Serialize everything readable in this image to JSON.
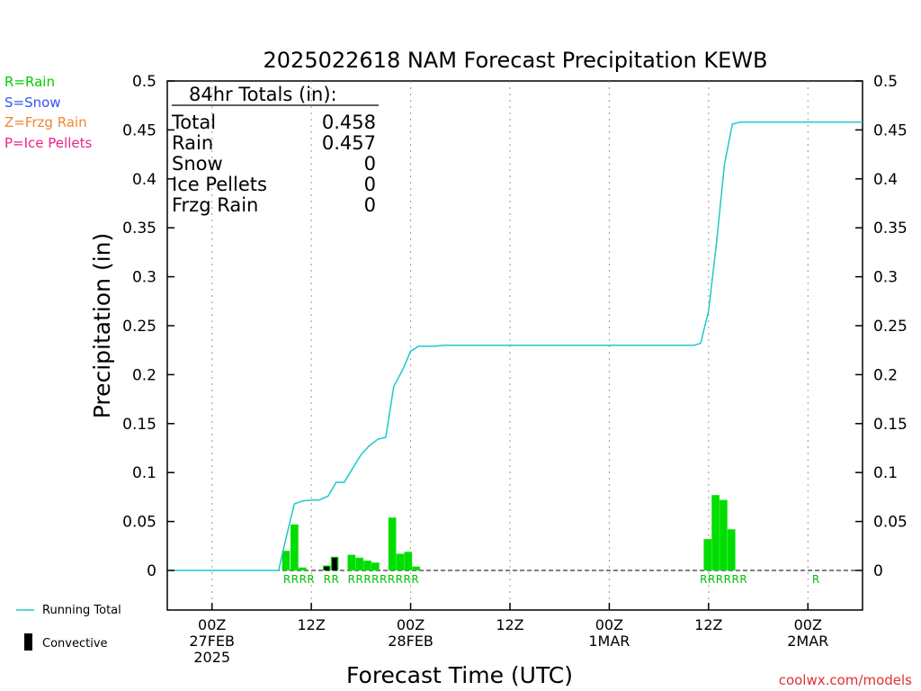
{
  "title": "2025022618 NAM Forecast Precipitation KEWB",
  "credit": "coolwx.com/models",
  "type_legend": [
    {
      "label": "R=Rain",
      "color": "#00cc00"
    },
    {
      "label": "S=Snow",
      "color": "#3355ee"
    },
    {
      "label": "Z=Frzg Rain",
      "color": "#ee8833"
    },
    {
      "label": "P=Ice Pellets",
      "color": "#ee2288"
    }
  ],
  "bottom_legend": {
    "running_total": "Running Total",
    "convective": "Convective"
  },
  "totals": {
    "heading": "84hr Totals (in):",
    "rows": [
      {
        "label": "Total",
        "value": "0.458"
      },
      {
        "label": "Rain",
        "value": "0.457"
      },
      {
        "label": "Snow",
        "value": "0"
      },
      {
        "label": "Ice Pellets",
        "value": "0"
      },
      {
        "label": "Frzg Rain",
        "value": "0"
      }
    ]
  },
  "chart_data": {
    "type": "bar",
    "title": "2025022618 NAM Forecast Precipitation KEWB",
    "xlabel": "Forecast Time (UTC)",
    "ylabel": "Precipitation (in)",
    "ylim": [
      -0.04,
      0.5
    ],
    "yticks": [
      "0.5",
      "0.45",
      "0.4",
      "0.35",
      "0.3",
      "0.25",
      "0.2",
      "0.15",
      "0.1",
      "0.05",
      "0"
    ],
    "ytick_values": [
      0.5,
      0.45,
      0.4,
      0.35,
      0.3,
      0.25,
      0.2,
      0.15,
      0.1,
      0.05,
      0
    ],
    "xlim_hours": [
      -4.5,
      65.5
    ],
    "x_ticks": [
      {
        "hour": 0,
        "lines": [
          "00Z",
          "27FEB",
          "2025"
        ]
      },
      {
        "hour": 10,
        "lines": [
          "12Z"
        ]
      },
      {
        "hour": 20,
        "lines": [
          "00Z",
          "28FEB"
        ]
      },
      {
        "hour": 30,
        "lines": [
          "12Z"
        ]
      },
      {
        "hour": 40,
        "lines": [
          "00Z",
          "1MAR"
        ]
      },
      {
        "hour": 50,
        "lines": [
          "12Z"
        ]
      },
      {
        "hour": 60,
        "lines": [
          "00Z",
          "2MAR"
        ]
      }
    ],
    "grid": "vertical dotted",
    "series": [
      {
        "name": "Running Total",
        "color": "#20c8c8",
        "points": [
          [
            -4.2,
            0
          ],
          [
            6.7,
            0
          ],
          [
            7.5,
            0.035
          ],
          [
            8.3,
            0.068
          ],
          [
            9.1,
            0.071
          ],
          [
            10.0,
            0.072
          ],
          [
            10.8,
            0.072
          ],
          [
            11.7,
            0.076
          ],
          [
            12.5,
            0.09
          ],
          [
            13.3,
            0.09
          ],
          [
            14.2,
            0.105
          ],
          [
            15.0,
            0.118
          ],
          [
            15.8,
            0.127
          ],
          [
            16.7,
            0.134
          ],
          [
            17.5,
            0.136
          ],
          [
            18.3,
            0.188
          ],
          [
            19.2,
            0.205
          ],
          [
            20.0,
            0.224
          ],
          [
            20.8,
            0.229
          ],
          [
            21.7,
            0.229
          ],
          [
            22.5,
            0.229
          ],
          [
            23.3,
            0.23
          ],
          [
            30,
            0.23
          ],
          [
            40,
            0.23
          ],
          [
            48.5,
            0.23
          ],
          [
            49.2,
            0.232
          ],
          [
            50.0,
            0.265
          ],
          [
            50.8,
            0.335
          ],
          [
            51.6,
            0.415
          ],
          [
            52.4,
            0.456
          ],
          [
            53.2,
            0.458
          ],
          [
            58.0,
            0.458
          ],
          [
            60.0,
            0.458
          ],
          [
            65.5,
            0.458
          ]
        ]
      },
      {
        "name": "Convective",
        "color": "#000000",
        "bars": [
          [
            11.55,
            0.004
          ],
          [
            12.35,
            0.013
          ]
        ]
      }
    ],
    "bars": {
      "width_hours": 0.78,
      "color": "#00dd00",
      "values": [
        [
          7.45,
          0.02
        ],
        [
          8.3,
          0.047
        ],
        [
          9.1,
          0.003
        ],
        [
          11.55,
          0.005
        ],
        [
          12.35,
          0.014
        ],
        [
          14.05,
          0.016
        ],
        [
          14.85,
          0.013
        ],
        [
          15.65,
          0.01
        ],
        [
          16.45,
          0.008
        ],
        [
          18.15,
          0.054
        ],
        [
          18.95,
          0.017
        ],
        [
          19.75,
          0.019
        ],
        [
          20.55,
          0.004
        ],
        [
          49.9,
          0.032
        ],
        [
          50.7,
          0.077
        ],
        [
          51.5,
          0.072
        ],
        [
          52.3,
          0.042
        ]
      ]
    },
    "type_codes": [
      {
        "hour": 7.55,
        "text": "R"
      },
      {
        "hour": 8.35,
        "text": "R"
      },
      {
        "hour": 9.15,
        "text": "R"
      },
      {
        "hour": 9.95,
        "text": "R"
      },
      {
        "hour": 11.6,
        "text": "R"
      },
      {
        "hour": 12.4,
        "text": "R"
      },
      {
        "hour": 14.05,
        "text": "R"
      },
      {
        "hour": 14.85,
        "text": "R"
      },
      {
        "hour": 15.65,
        "text": "R"
      },
      {
        "hour": 16.45,
        "text": "R"
      },
      {
        "hour": 17.25,
        "text": "R"
      },
      {
        "hour": 18.05,
        "text": "R"
      },
      {
        "hour": 18.85,
        "text": "R"
      },
      {
        "hour": 19.65,
        "text": "R"
      },
      {
        "hour": 20.45,
        "text": "R"
      },
      {
        "hour": 49.5,
        "text": "R"
      },
      {
        "hour": 50.3,
        "text": "R"
      },
      {
        "hour": 51.1,
        "text": "R"
      },
      {
        "hour": 51.9,
        "text": "R"
      },
      {
        "hour": 52.7,
        "text": "R"
      },
      {
        "hour": 53.5,
        "text": "R"
      },
      {
        "hour": 60.8,
        "text": "R"
      }
    ]
  }
}
